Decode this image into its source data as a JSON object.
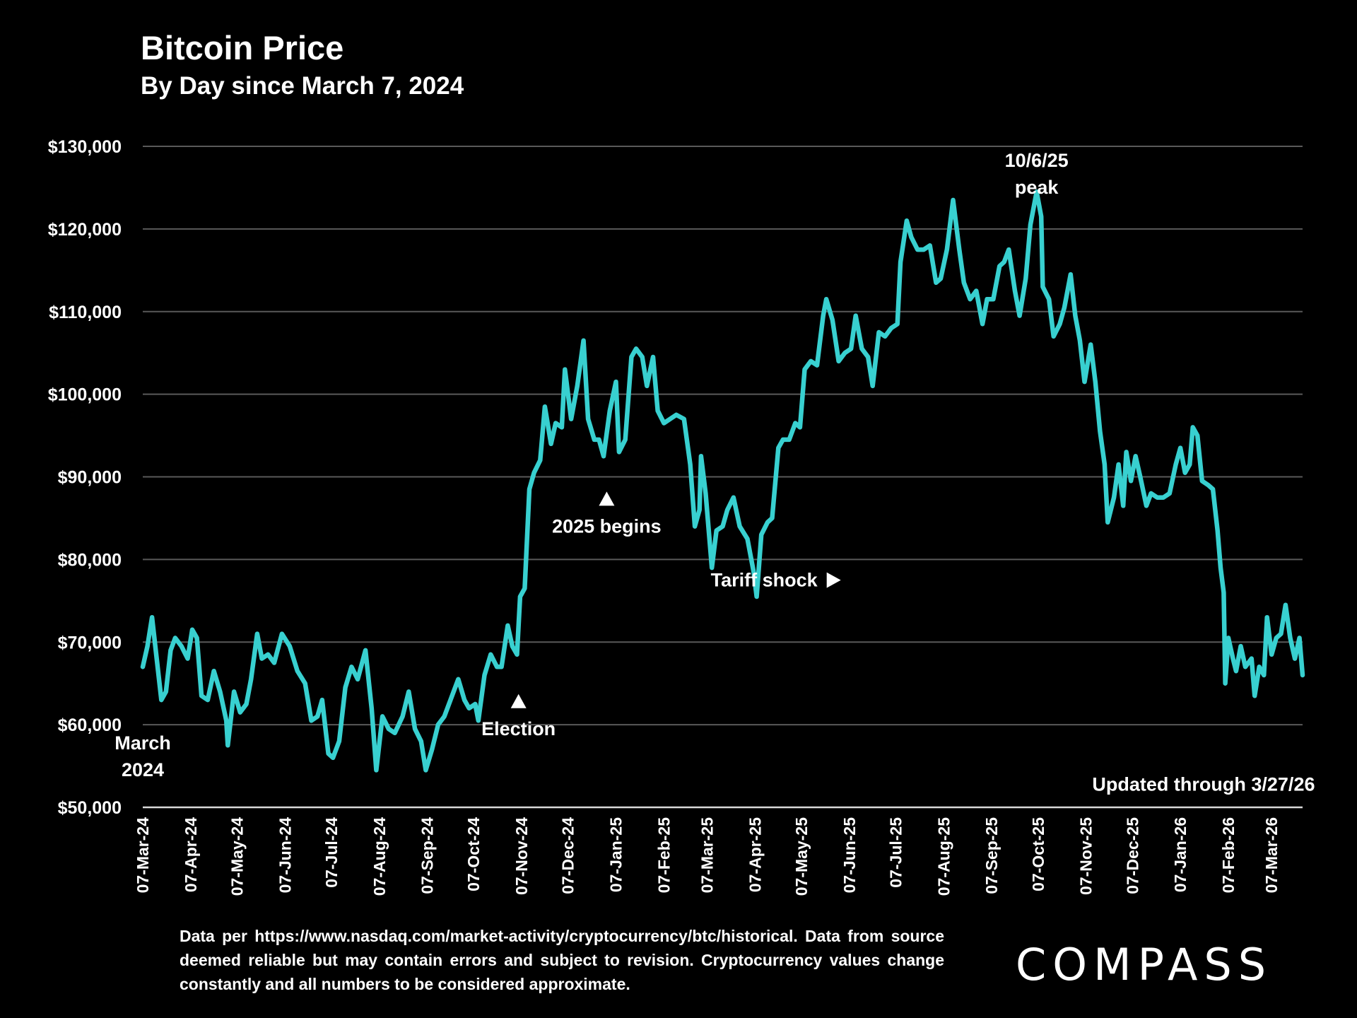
{
  "header": {
    "title": "Bitcoin Price",
    "subtitle": "By Day since March 7, 2024"
  },
  "chart_data": {
    "type": "line",
    "title": "Bitcoin Price",
    "subtitle": "By Day since March 7, 2024",
    "xlabel": "",
    "ylabel": "",
    "ylim": [
      50000,
      130000
    ],
    "y_ticks": [
      50000,
      60000,
      70000,
      80000,
      90000,
      100000,
      110000,
      120000,
      130000
    ],
    "y_tick_labels": [
      "$50,000",
      "$60,000",
      "$70,000",
      "$80,000",
      "$90,000",
      "$100,000",
      "$110,000",
      "$120,000",
      "$130,000"
    ],
    "x_range": [
      "2024-03-07",
      "2026-03-27"
    ],
    "x_ticks": [
      "2024-03-07",
      "2024-04-07",
      "2024-05-07",
      "2024-06-07",
      "2024-07-07",
      "2024-08-07",
      "2024-09-07",
      "2024-10-07",
      "2024-11-07",
      "2024-12-07",
      "2025-01-07",
      "2025-02-07",
      "2025-03-07",
      "2025-04-07",
      "2025-05-07",
      "2025-06-07",
      "2025-07-07",
      "2025-08-07",
      "2025-09-07",
      "2025-10-07",
      "2025-11-07",
      "2025-12-07",
      "2026-01-07",
      "2026-02-07",
      "2026-03-07"
    ],
    "x_tick_labels": [
      "07-Mar-24",
      "07-Apr-24",
      "07-May-24",
      "07-Jun-24",
      "07-Jul-24",
      "07-Aug-24",
      "07-Sep-24",
      "07-Oct-24",
      "07-Nov-24",
      "07-Dec-24",
      "07-Jan-25",
      "07-Feb-25",
      "07-Mar-25",
      "07-Apr-25",
      "07-May-25",
      "07-Jun-25",
      "07-Jul-25",
      "07-Aug-25",
      "07-Sep-25",
      "07-Oct-25",
      "07-Nov-25",
      "07-Dec-25",
      "07-Jan-26",
      "07-Feb-26",
      "07-Mar-26"
    ],
    "grid": true,
    "legend": "none",
    "series": [
      {
        "name": "Bitcoin Price (USD, approx.)",
        "color": "#38d0d0",
        "points": [
          [
            "2024-03-07",
            67000
          ],
          [
            "2024-03-10",
            69500
          ],
          [
            "2024-03-13",
            73000
          ],
          [
            "2024-03-16",
            68000
          ],
          [
            "2024-03-19",
            63000
          ],
          [
            "2024-03-22",
            64000
          ],
          [
            "2024-03-25",
            69000
          ],
          [
            "2024-03-28",
            70500
          ],
          [
            "2024-04-01",
            69500
          ],
          [
            "2024-04-05",
            68000
          ],
          [
            "2024-04-08",
            71500
          ],
          [
            "2024-04-11",
            70500
          ],
          [
            "2024-04-14",
            63500
          ],
          [
            "2024-04-18",
            63000
          ],
          [
            "2024-04-22",
            66500
          ],
          [
            "2024-04-26",
            64000
          ],
          [
            "2024-04-30",
            60500
          ],
          [
            "2024-05-01",
            57500
          ],
          [
            "2024-05-05",
            64000
          ],
          [
            "2024-05-09",
            61500
          ],
          [
            "2024-05-13",
            62500
          ],
          [
            "2024-05-16",
            65500
          ],
          [
            "2024-05-20",
            71000
          ],
          [
            "2024-05-23",
            68000
          ],
          [
            "2024-05-27",
            68500
          ],
          [
            "2024-05-31",
            67500
          ],
          [
            "2024-06-05",
            71000
          ],
          [
            "2024-06-10",
            69500
          ],
          [
            "2024-06-15",
            66500
          ],
          [
            "2024-06-20",
            65000
          ],
          [
            "2024-06-24",
            60500
          ],
          [
            "2024-06-28",
            61000
          ],
          [
            "2024-07-01",
            63000
          ],
          [
            "2024-07-05",
            56500
          ],
          [
            "2024-07-08",
            56000
          ],
          [
            "2024-07-12",
            58000
          ],
          [
            "2024-07-16",
            64500
          ],
          [
            "2024-07-20",
            67000
          ],
          [
            "2024-07-24",
            65500
          ],
          [
            "2024-07-29",
            69000
          ],
          [
            "2024-08-02",
            62000
          ],
          [
            "2024-08-05",
            54500
          ],
          [
            "2024-08-09",
            61000
          ],
          [
            "2024-08-13",
            59500
          ],
          [
            "2024-08-17",
            59000
          ],
          [
            "2024-08-22",
            61000
          ],
          [
            "2024-08-26",
            64000
          ],
          [
            "2024-08-30",
            59500
          ],
          [
            "2024-09-03",
            58000
          ],
          [
            "2024-09-06",
            54500
          ],
          [
            "2024-09-10",
            57000
          ],
          [
            "2024-09-14",
            60000
          ],
          [
            "2024-09-18",
            61000
          ],
          [
            "2024-09-22",
            63000
          ],
          [
            "2024-09-27",
            65500
          ],
          [
            "2024-10-01",
            63000
          ],
          [
            "2024-10-04",
            62000
          ],
          [
            "2024-10-08",
            62500
          ],
          [
            "2024-10-10",
            60500
          ],
          [
            "2024-10-14",
            66000
          ],
          [
            "2024-10-18",
            68500
          ],
          [
            "2024-10-22",
            67000
          ],
          [
            "2024-10-25",
            67000
          ],
          [
            "2024-10-29",
            72000
          ],
          [
            "2024-11-01",
            69500
          ],
          [
            "2024-11-04",
            68500
          ],
          [
            "2024-11-06",
            75500
          ],
          [
            "2024-11-09",
            76500
          ],
          [
            "2024-11-12",
            88500
          ],
          [
            "2024-11-15",
            90500
          ],
          [
            "2024-11-19",
            92000
          ],
          [
            "2024-11-22",
            98500
          ],
          [
            "2024-11-26",
            94000
          ],
          [
            "2024-11-29",
            96500
          ],
          [
            "2024-12-03",
            96000
          ],
          [
            "2024-12-05",
            103000
          ],
          [
            "2024-12-09",
            97000
          ],
          [
            "2024-12-13",
            101000
          ],
          [
            "2024-12-17",
            106500
          ],
          [
            "2024-12-20",
            97000
          ],
          [
            "2024-12-24",
            94500
          ],
          [
            "2024-12-27",
            94500
          ],
          [
            "2024-12-30",
            92500
          ],
          [
            "2025-01-03",
            98000
          ],
          [
            "2025-01-07",
            101500
          ],
          [
            "2025-01-09",
            93000
          ],
          [
            "2025-01-13",
            94500
          ],
          [
            "2025-01-17",
            104500
          ],
          [
            "2025-01-20",
            105500
          ],
          [
            "2025-01-24",
            104500
          ],
          [
            "2025-01-27",
            101000
          ],
          [
            "2025-01-31",
            104500
          ],
          [
            "2025-02-03",
            98000
          ],
          [
            "2025-02-07",
            96500
          ],
          [
            "2025-02-11",
            97000
          ],
          [
            "2025-02-15",
            97500
          ],
          [
            "2025-02-20",
            97000
          ],
          [
            "2025-02-24",
            91500
          ],
          [
            "2025-02-27",
            84000
          ],
          [
            "2025-03-02",
            86000
          ],
          [
            "2025-03-03",
            92500
          ],
          [
            "2025-03-06",
            88000
          ],
          [
            "2025-03-10",
            79000
          ],
          [
            "2025-03-13",
            83500
          ],
          [
            "2025-03-17",
            84000
          ],
          [
            "2025-03-20",
            86000
          ],
          [
            "2025-03-24",
            87500
          ],
          [
            "2025-03-28",
            84000
          ],
          [
            "2025-04-02",
            82500
          ],
          [
            "2025-04-06",
            78500
          ],
          [
            "2025-04-08",
            75500
          ],
          [
            "2025-04-11",
            83000
          ],
          [
            "2025-04-15",
            84500
          ],
          [
            "2025-04-18",
            85000
          ],
          [
            "2025-04-22",
            93500
          ],
          [
            "2025-04-25",
            94500
          ],
          [
            "2025-04-29",
            94500
          ],
          [
            "2025-05-03",
            96500
          ],
          [
            "2025-05-06",
            96000
          ],
          [
            "2025-05-09",
            103000
          ],
          [
            "2025-05-13",
            104000
          ],
          [
            "2025-05-17",
            103500
          ],
          [
            "2025-05-21",
            109500
          ],
          [
            "2025-05-23",
            111500
          ],
          [
            "2025-05-27",
            109000
          ],
          [
            "2025-05-31",
            104000
          ],
          [
            "2025-06-04",
            105000
          ],
          [
            "2025-06-08",
            105500
          ],
          [
            "2025-06-11",
            109500
          ],
          [
            "2025-06-15",
            105500
          ],
          [
            "2025-06-19",
            104500
          ],
          [
            "2025-06-22",
            101000
          ],
          [
            "2025-06-26",
            107500
          ],
          [
            "2025-06-30",
            107000
          ],
          [
            "2025-07-04",
            108000
          ],
          [
            "2025-07-08",
            108500
          ],
          [
            "2025-07-10",
            116000
          ],
          [
            "2025-07-14",
            121000
          ],
          [
            "2025-07-17",
            119000
          ],
          [
            "2025-07-21",
            117500
          ],
          [
            "2025-07-25",
            117500
          ],
          [
            "2025-07-29",
            118000
          ],
          [
            "2025-08-02",
            113500
          ],
          [
            "2025-08-05",
            114000
          ],
          [
            "2025-08-09",
            117500
          ],
          [
            "2025-08-13",
            123500
          ],
          [
            "2025-08-17",
            117500
          ],
          [
            "2025-08-20",
            113500
          ],
          [
            "2025-08-24",
            111500
          ],
          [
            "2025-08-28",
            112500
          ],
          [
            "2025-09-01",
            108500
          ],
          [
            "2025-09-04",
            111500
          ],
          [
            "2025-09-08",
            111500
          ],
          [
            "2025-09-12",
            115500
          ],
          [
            "2025-09-15",
            116000
          ],
          [
            "2025-09-18",
            117500
          ],
          [
            "2025-09-22",
            112500
          ],
          [
            "2025-09-25",
            109500
          ],
          [
            "2025-09-29",
            114000
          ],
          [
            "2025-10-02",
            120500
          ],
          [
            "2025-10-06",
            124500
          ],
          [
            "2025-10-09",
            121500
          ],
          [
            "2025-10-10",
            113000
          ],
          [
            "2025-10-14",
            111500
          ],
          [
            "2025-10-17",
            107000
          ],
          [
            "2025-10-21",
            108500
          ],
          [
            "2025-10-24",
            110500
          ],
          [
            "2025-10-28",
            114500
          ],
          [
            "2025-10-31",
            109500
          ],
          [
            "2025-11-03",
            106500
          ],
          [
            "2025-11-06",
            101500
          ],
          [
            "2025-11-10",
            106000
          ],
          [
            "2025-11-13",
            101500
          ],
          [
            "2025-11-16",
            95500
          ],
          [
            "2025-11-19",
            91500
          ],
          [
            "2025-11-21",
            84500
          ],
          [
            "2025-11-25",
            87500
          ],
          [
            "2025-11-28",
            91500
          ],
          [
            "2025-12-01",
            86500
          ],
          [
            "2025-12-03",
            93000
          ],
          [
            "2025-12-06",
            89500
          ],
          [
            "2025-12-09",
            92500
          ],
          [
            "2025-12-12",
            90000
          ],
          [
            "2025-12-16",
            86500
          ],
          [
            "2025-12-19",
            88000
          ],
          [
            "2025-12-23",
            87500
          ],
          [
            "2025-12-27",
            87500
          ],
          [
            "2025-12-31",
            88000
          ],
          [
            "2026-01-04",
            91500
          ],
          [
            "2026-01-07",
            93500
          ],
          [
            "2026-01-10",
            90500
          ],
          [
            "2026-01-13",
            91500
          ],
          [
            "2026-01-15",
            96000
          ],
          [
            "2026-01-18",
            95000
          ],
          [
            "2026-01-21",
            89500
          ],
          [
            "2026-01-25",
            89000
          ],
          [
            "2026-01-28",
            88500
          ],
          [
            "2026-01-31",
            83500
          ],
          [
            "2026-02-02",
            79000
          ],
          [
            "2026-02-04",
            76000
          ],
          [
            "2026-02-05",
            65000
          ],
          [
            "2026-02-07",
            70500
          ],
          [
            "2026-02-10",
            68000
          ],
          [
            "2026-02-12",
            66500
          ],
          [
            "2026-02-15",
            69500
          ],
          [
            "2026-02-18",
            67000
          ],
          [
            "2026-02-22",
            68000
          ],
          [
            "2026-02-24",
            63500
          ],
          [
            "2026-02-27",
            67000
          ],
          [
            "2026-03-02",
            66000
          ],
          [
            "2026-03-04",
            73000
          ],
          [
            "2026-03-07",
            68500
          ],
          [
            "2026-03-10",
            70500
          ],
          [
            "2026-03-13",
            71000
          ],
          [
            "2026-03-16",
            74500
          ],
          [
            "2026-03-19",
            70500
          ],
          [
            "2026-03-22",
            68000
          ],
          [
            "2026-03-25",
            70500
          ],
          [
            "2026-03-27",
            66000
          ]
        ]
      }
    ],
    "annotations": [
      {
        "text": [
          "March",
          "2024"
        ],
        "date": "2024-03-07",
        "value": 57000,
        "marker": "none"
      },
      {
        "text": [
          "Election"
        ],
        "date": "2024-11-05",
        "value": 62000,
        "marker": "triangle-up"
      },
      {
        "text": [
          "2025 begins"
        ],
        "date": "2025-01-01",
        "value": 86500,
        "marker": "triangle-up"
      },
      {
        "text": [
          "Tariff shock"
        ],
        "date": "2025-03-02",
        "value": 77500,
        "marker": "triangle-right"
      },
      {
        "text": [
          "10/6/25",
          "peak"
        ],
        "date": "2025-10-06",
        "value": 127500,
        "marker": "none"
      },
      {
        "text": [
          "Updated through 3/27/26"
        ],
        "date": "2026-01-22",
        "value": 52000,
        "marker": "none"
      }
    ]
  },
  "footer": {
    "note": "Data per https://www.nasdaq.com/market-activity/cryptocurrency/btc/historical. Data from source deemed reliable but may contain errors and subject to revision. Cryptocurrency values change constantly and all numbers to be considered approximate.",
    "logo": "COMPASS"
  }
}
